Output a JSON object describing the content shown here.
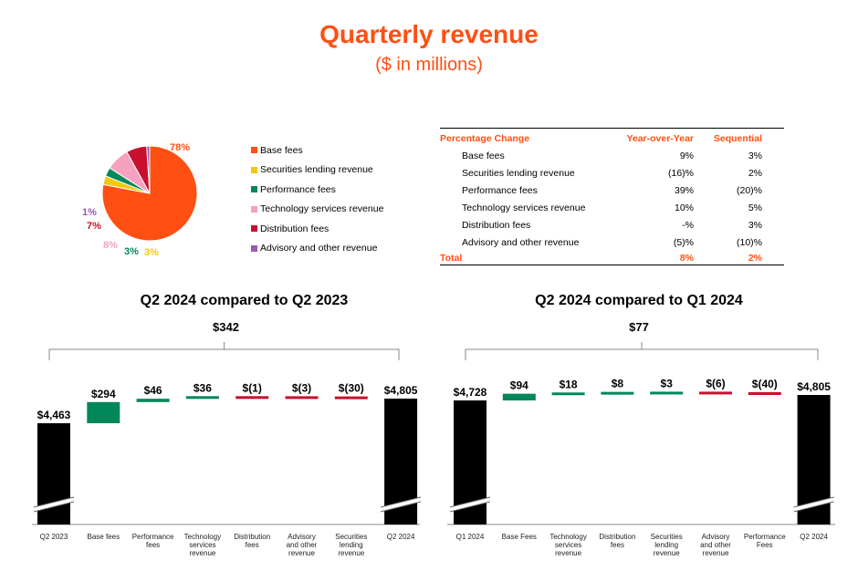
{
  "header": {
    "title": "Quarterly revenue",
    "subtitle": "($ in millions)"
  },
  "colors": {
    "accent": "#ff4f12",
    "base": "#ff4f12",
    "securities": "#f2c80f",
    "performance": "#00875a",
    "technology": "#f7a1c0",
    "distribution": "#c8102e",
    "advisory": "#9b59b6",
    "positive": "#00875a",
    "negative": "#c8102e",
    "black": "#000000"
  },
  "legend": [
    {
      "label": "Base fees",
      "color": "#ff4f12"
    },
    {
      "label": "Securities lending revenue",
      "color": "#f2c80f"
    },
    {
      "label": "Performance fees",
      "color": "#00875a"
    },
    {
      "label": "Technology services revenue",
      "color": "#f7a1c0"
    },
    {
      "label": "Distribution fees",
      "color": "#c8102e"
    },
    {
      "label": "Advisory and other revenue",
      "color": "#9b59b6"
    }
  ],
  "table": {
    "headers": [
      "Percentage Change",
      "Year-over-Year",
      "Sequential"
    ],
    "rows": [
      {
        "label": "Base fees",
        "yoy": "9%",
        "seq": "3%"
      },
      {
        "label": "Securities lending revenue",
        "yoy": "(16)%",
        "seq": "2%"
      },
      {
        "label": "Performance fees",
        "yoy": "39%",
        "seq": "(20)%"
      },
      {
        "label": "Technology services revenue",
        "yoy": "10%",
        "seq": "5%"
      },
      {
        "label": "Distribution fees",
        "yoy": "-%",
        "seq": "3%"
      },
      {
        "label": "Advisory and other revenue",
        "yoy": "(5)%",
        "seq": "(10)%"
      }
    ],
    "total": {
      "label": "Total",
      "yoy": "8%",
      "seq": "2%"
    }
  },
  "chart_data": [
    {
      "type": "pie",
      "categories": [
        "Base fees",
        "Securities lending revenue",
        "Performance fees",
        "Technology services revenue",
        "Distribution fees",
        "Advisory and other revenue"
      ],
      "values": [
        78,
        3,
        3,
        8,
        7,
        1
      ],
      "labels": [
        "78%",
        "3%",
        "3%",
        "8%",
        "7%",
        "1%"
      ]
    },
    {
      "type": "waterfall",
      "title": "Q2 2024 compared to Q2 2023",
      "total_change": "$342",
      "categories": [
        "Q2 2023",
        "Base fees",
        "Performance fees",
        "Technology services revenue",
        "Distribution fees",
        "Advisory and other revenue",
        "Securities lending revenue",
        "Q2 2024"
      ],
      "tick_lines": [
        [
          "Q2 2023"
        ],
        [
          "Base fees"
        ],
        [
          "Performance",
          "fees"
        ],
        [
          "Technology",
          "services",
          "revenue"
        ],
        [
          "Distribution",
          "fees"
        ],
        [
          "Advisory",
          "and other",
          "revenue"
        ],
        [
          "Securities",
          "lending",
          "revenue"
        ],
        [
          "Q2 2024"
        ]
      ],
      "values": [
        4463,
        294,
        46,
        36,
        -1,
        -3,
        -30,
        4805
      ],
      "labels": [
        "$4,463",
        "$294",
        "$46",
        "$36",
        "$(1)",
        "$(3)",
        "$(30)",
        "$4,805"
      ]
    },
    {
      "type": "waterfall",
      "title": "Q2 2024 compared to Q1 2024",
      "total_change": "$77",
      "categories": [
        "Q1 2024",
        "Base Fees",
        "Technology services revenue",
        "Distribution fees",
        "Securities lending revenue",
        "Advisory and other revenue",
        "Performance Fees",
        "Q2 2024"
      ],
      "tick_lines": [
        [
          "Q1 2024"
        ],
        [
          "Base Fees"
        ],
        [
          "Technology",
          "services",
          "revenue"
        ],
        [
          "Distribution",
          "fees"
        ],
        [
          "Securities",
          "lending",
          "revenue"
        ],
        [
          "Advisory",
          "and other",
          "revenue"
        ],
        [
          "Performance",
          "Fees"
        ],
        [
          "Q2 2024"
        ]
      ],
      "values": [
        4728,
        94,
        18,
        8,
        3,
        -6,
        -40,
        4805
      ],
      "labels": [
        "$4,728",
        "$94",
        "$18",
        "$8",
        "$3",
        "$(6)",
        "$(40)",
        "$4,805"
      ]
    }
  ]
}
